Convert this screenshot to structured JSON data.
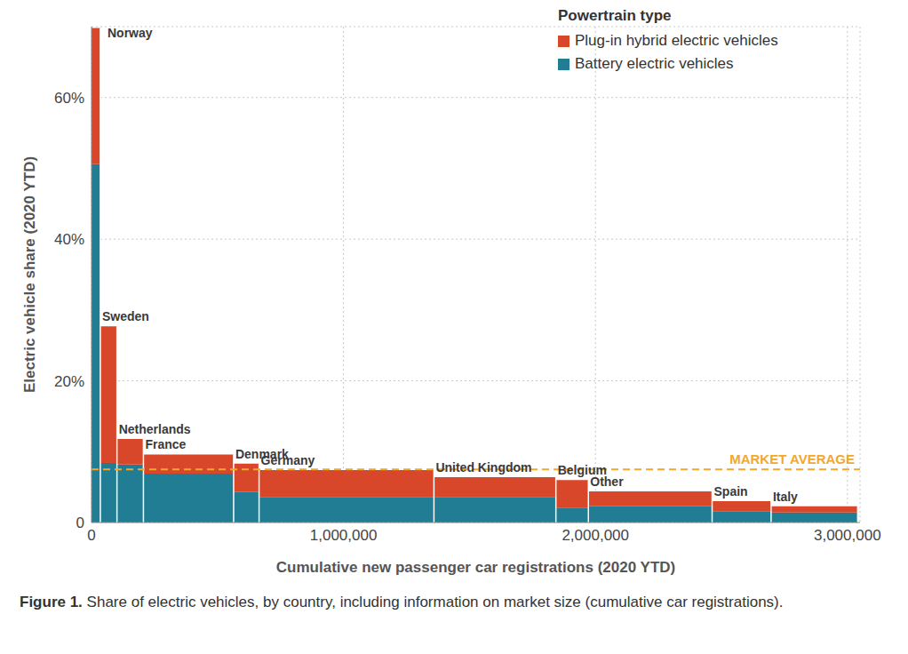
{
  "chart_data": {
    "type": "marimekko",
    "stacked": true,
    "grid": true,
    "legend": "upper right",
    "legend_title": "Powertrain type",
    "x_label": "Cumulative new passenger car registrations (2020 YTD)",
    "y_label": "Electric vehicle share (2020 YTD)",
    "caption": {
      "label": "Figure 1.",
      "text": "Share of electric vehicles, by country, including information on market size (cumulative car registrations)."
    },
    "categories": [
      "Norway",
      "Sweden",
      "Netherlands",
      "France",
      "Denmark",
      "Germany",
      "United Kingdom",
      "Belgium",
      "Other",
      "Spain",
      "Italy"
    ],
    "registrations": [
      35000,
      66000,
      105000,
      358000,
      101000,
      694000,
      484000,
      129000,
      491000,
      234000,
      341000
    ],
    "series": [
      {
        "name": "Plug-in hybrid electric vehicles",
        "color": "#d9472b",
        "values": [
          19.2,
          19.3,
          3.6,
          2.7,
          4.0,
          3.8,
          2.8,
          3.9,
          2.1,
          1.4,
          0.9
        ]
      },
      {
        "name": "Battery electric vehicles",
        "color": "#207d93",
        "values": [
          50.6,
          8.4,
          8.2,
          6.9,
          4.3,
          3.6,
          3.6,
          2.1,
          2.3,
          1.6,
          1.4
        ]
      }
    ],
    "reference_line": {
      "label": "MARKET AVERAGE",
      "value": 7.5,
      "color": "#f0a830",
      "line_style": "dashed"
    },
    "xlim": [
      0,
      3050000
    ],
    "xticks": [
      0,
      {
        "value": 1000000,
        "label": "1,000,000"
      },
      {
        "value": 2000000,
        "label": "2,000,000"
      },
      {
        "value": 3000000,
        "label": "3,000,000"
      }
    ],
    "ylim": [
      0,
      70
    ],
    "yticks": [
      0,
      {
        "value": 20,
        "label": "20%"
      },
      {
        "value": 40,
        "label": "40%"
      },
      {
        "value": 60,
        "label": "60%"
      }
    ]
  }
}
